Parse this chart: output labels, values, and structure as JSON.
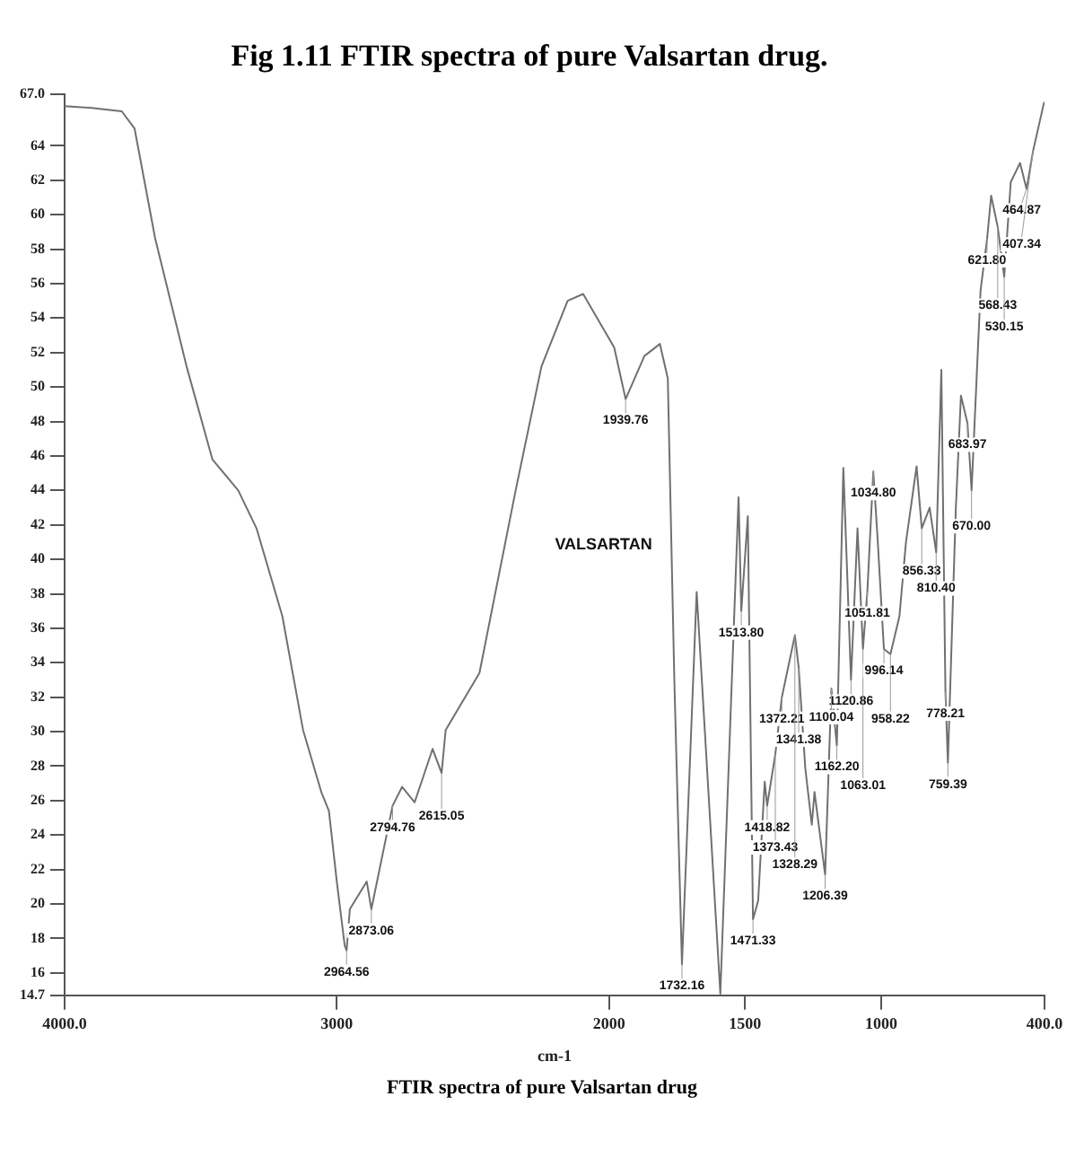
{
  "chart_data": {
    "type": "line",
    "title": "Fig 1.11 FTIR spectra of pure Valsartan drug.",
    "xlabel": "cm-1",
    "x": [
      4000,
      3900,
      3790,
      3743,
      3667,
      3552,
      3457,
      3362,
      3295,
      3200,
      3124,
      3057,
      3029,
      3000,
      2971,
      2964,
      2952,
      2890,
      2873,
      2795,
      2760,
      2714,
      2648,
      2615,
      2600,
      2476,
      2343,
      2248,
      2152,
      2095,
      1981,
      1939,
      1870,
      1813,
      1784,
      1760,
      1732,
      1678,
      1591,
      1524,
      1514,
      1490,
      1471,
      1452,
      1428,
      1419,
      1389,
      1365,
      1317,
      1303,
      1279,
      1255,
      1245,
      1206,
      1183,
      1163,
      1139,
      1125,
      1111,
      1087,
      1067,
      1051,
      1029,
      1014,
      990,
      966,
      933,
      909,
      870,
      851,
      822,
      798,
      779,
      764,
      755,
      726,
      707,
      683,
      668,
      635,
      611,
      596,
      572,
      548,
      524,
      490,
      466,
      442,
      402
    ],
    "series": [
      {
        "name": "VALSARTAN",
        "color": "#707070",
        "values": [
          66.3,
          66.2,
          66.0,
          65.0,
          58.6,
          51.2,
          45.8,
          44.0,
          41.8,
          36.7,
          30.1,
          26.5,
          25.4,
          21.3,
          17.6,
          17.3,
          19.7,
          21.3,
          19.7,
          25.7,
          26.8,
          25.9,
          29.0,
          27.6,
          30.1,
          33.4,
          44.0,
          51.2,
          55.0,
          55.4,
          52.3,
          49.3,
          51.8,
          52.5,
          50.5,
          33.0,
          16.5,
          38.1,
          14.8,
          43.6,
          37.0,
          42.5,
          19.1,
          20.2,
          27.1,
          25.7,
          28.7,
          32.0,
          35.6,
          33.7,
          27.9,
          24.6,
          26.5,
          21.7,
          32.5,
          29.2,
          45.3,
          39.2,
          33.0,
          41.8,
          34.8,
          38.1,
          45.1,
          41.4,
          34.8,
          34.5,
          36.7,
          41.0,
          45.4,
          41.8,
          43.0,
          40.4,
          51.0,
          32.3,
          28.2,
          42.9,
          49.5,
          47.9,
          44.0,
          55.6,
          58.6,
          61.1,
          59.3,
          56.4,
          61.9,
          63.0,
          61.5,
          63.7,
          66.5
        ]
      }
    ],
    "xlim": [
      4000,
      400
    ],
    "xticks": [
      {
        "value": 4000,
        "label": "4000.0"
      },
      3000,
      2000,
      1500,
      1000,
      {
        "value": 400,
        "label": "400.0"
      }
    ],
    "ylim": [
      14.7,
      67
    ],
    "yticks": [
      {
        "value": 14.7,
        "label": "14.7"
      },
      16,
      18,
      20,
      22,
      24,
      26,
      28,
      30,
      32,
      34,
      36,
      38,
      40,
      42,
      44,
      46,
      48,
      50,
      52,
      54,
      56,
      58,
      60,
      62,
      64,
      {
        "value": 67,
        "label": "67.0"
      }
    ],
    "grid": false,
    "legend": false,
    "marker": "none",
    "line_style": "solid",
    "annotations": [
      {
        "text": "2964.56",
        "x": 2964,
        "y": 17.3
      },
      {
        "text": "2873.06",
        "x": 2873,
        "y": 19.7
      },
      {
        "text": "2794.76",
        "x": 2795,
        "y": 25.7
      },
      {
        "text": "2615.05",
        "x": 2615,
        "y": 27.6
      },
      {
        "text": "1939.76",
        "x": 1939,
        "y": 49.3
      },
      {
        "text": "1732.16",
        "x": 1732,
        "y": 16.5
      },
      {
        "text": "1513.80",
        "x": 1514,
        "y": 37.0
      },
      {
        "text": "1471.33",
        "x": 1471,
        "y": 19.1
      },
      {
        "text": "1418.82",
        "x": 1419,
        "y": 25.7
      },
      {
        "text": "1373.43",
        "x": 1389,
        "y": 28.7
      },
      {
        "text": "1372.21",
        "x": 1365,
        "y": 32.0
      },
      {
        "text": "1341.38",
        "x": 1303,
        "y": 33.7
      },
      {
        "text": "1328.29",
        "x": 1317,
        "y": 35.6
      },
      {
        "text": "1206.39",
        "x": 1206,
        "y": 21.7
      },
      {
        "text": "1162.20",
        "x": 1163,
        "y": 29.2
      },
      {
        "text": "1120.86",
        "x": 1111,
        "y": 33.0
      },
      {
        "text": "1100.04",
        "x": 1183,
        "y": 32.5
      },
      {
        "text": "1063.01",
        "x": 1067,
        "y": 34.8
      },
      {
        "text": "1051.81",
        "x": 1051,
        "y": 38.1
      },
      {
        "text": "1034.80",
        "x": 1029,
        "y": 45.1
      },
      {
        "text": "996.14",
        "x": 990,
        "y": 34.8
      },
      {
        "text": "958.22",
        "x": 966,
        "y": 34.5
      },
      {
        "text": "856.33",
        "x": 851,
        "y": 41.8
      },
      {
        "text": "810.40",
        "x": 798,
        "y": 40.4
      },
      {
        "text": "778.21",
        "x": 764,
        "y": 32.3
      },
      {
        "text": "759.39",
        "x": 755,
        "y": 28.2
      },
      {
        "text": "683.97",
        "x": 683,
        "y": 47.9
      },
      {
        "text": "670.00",
        "x": 668,
        "y": 44.0
      },
      {
        "text": "621.80",
        "x": 611,
        "y": 58.6
      },
      {
        "text": "568.43",
        "x": 572,
        "y": 59.3
      },
      {
        "text": "530.15",
        "x": 548,
        "y": 56.4
      },
      {
        "text": "464.87",
        "x": 466,
        "y": 61.5
      },
      {
        "text": "407.34",
        "x": 442,
        "y": 63.7
      },
      "FTIR spectra of pure Valsartan drug"
    ]
  }
}
